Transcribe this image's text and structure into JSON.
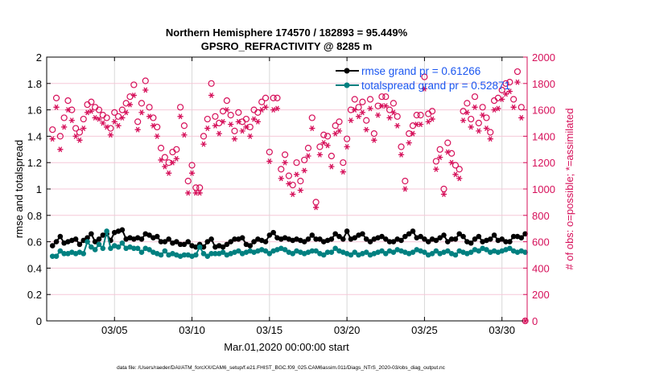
{
  "chart_data": {
    "type": "line",
    "title": "Northern Hemisphere 174570 / 182893 = 95.449%",
    "subtitle": "GPSRO_REFRACTIVITY @ 8285 m",
    "xlabel": "Mar.01,2020 00:00:00 start",
    "ylabel": "rmse and totalspread",
    "y2label": "# of obs: o=possible; *=assimilated",
    "footnote": "data file: /Users/raeder/DAI/ATM_forcXX/CAM6_setup/f.e21.FHIST_BGC.f09_025.CAM6assim.011/Diags_NTrS_2020-03/obs_diag_output.nc",
    "x_start": "2020-03-01T00:00",
    "x_step_hours": 6,
    "xlim": [
      "2020-02-29T15:00",
      "2020-03-31T15:00"
    ],
    "xticks": [
      {
        "date": "2020-03-05",
        "label": "03/05"
      },
      {
        "date": "2020-03-10",
        "label": "03/10"
      },
      {
        "date": "2020-03-15",
        "label": "03/15"
      },
      {
        "date": "2020-03-20",
        "label": "03/20"
      },
      {
        "date": "2020-03-25",
        "label": "03/25"
      },
      {
        "date": "2020-03-30",
        "label": "03/30"
      }
    ],
    "ylim": [
      0,
      2
    ],
    "yticks": [
      "0",
      "0.2",
      "0.4",
      "0.6",
      "0.8",
      "1",
      "1.2",
      "1.4",
      "1.6",
      "1.8",
      "2"
    ],
    "y2lim": [
      0,
      2000
    ],
    "y2ticks": [
      "0",
      "200",
      "400",
      "600",
      "800",
      "1000",
      "1200",
      "1400",
      "1600",
      "1800",
      "2000"
    ],
    "grid": true,
    "legend_placement": "top-right",
    "series": [
      {
        "name": "rmse grand pr = 0.61266",
        "axis": "left",
        "color": "#000000",
        "marker": "dot",
        "values": [
          0.57,
          0.6,
          0.64,
          0.59,
          0.6,
          0.61,
          0.62,
          0.58,
          0.61,
          0.63,
          0.66,
          0.6,
          0.62,
          0.65,
          0.66,
          0.61,
          0.67,
          0.68,
          0.69,
          0.62,
          0.63,
          0.62,
          0.63,
          0.62,
          0.66,
          0.65,
          0.63,
          0.64,
          0.6,
          0.6,
          0.62,
          0.59,
          0.6,
          0.58,
          0.58,
          0.6,
          0.57,
          0.56,
          0.58,
          0.56,
          0.6,
          0.62,
          0.56,
          0.57,
          0.56,
          0.58,
          0.6,
          0.62,
          0.62,
          0.63,
          0.58,
          0.57,
          0.6,
          0.62,
          0.61,
          0.6,
          0.65,
          0.67,
          0.63,
          0.62,
          0.63,
          0.62,
          0.61,
          0.62,
          0.61,
          0.6,
          0.62,
          0.65,
          0.62,
          0.62,
          0.6,
          0.61,
          0.62,
          0.66,
          0.64,
          0.62,
          0.68,
          0.62,
          0.63,
          0.65,
          0.66,
          0.62,
          0.6,
          0.62,
          0.63,
          0.64,
          0.62,
          0.6,
          0.6,
          0.62,
          0.61,
          0.64,
          0.66,
          0.68,
          0.63,
          0.64,
          0.62,
          0.6,
          0.62,
          0.61,
          0.63,
          0.65,
          0.6,
          0.62,
          0.62,
          0.66,
          0.64,
          0.6,
          0.59,
          0.62,
          0.64,
          0.6,
          0.61,
          0.62,
          0.65,
          0.61,
          0.62,
          0.6,
          0.6,
          0.64,
          0.64,
          0.63,
          0.66
        ]
      },
      {
        "name": "totalspread grand pr = 0.52871",
        "axis": "left",
        "color": "#008080",
        "marker": "dot",
        "values": [
          0.49,
          0.49,
          0.53,
          0.51,
          0.51,
          0.52,
          0.51,
          0.52,
          0.51,
          0.6,
          0.56,
          0.54,
          0.58,
          0.55,
          0.68,
          0.55,
          0.57,
          0.56,
          0.59,
          0.55,
          0.56,
          0.55,
          0.55,
          0.52,
          0.55,
          0.54,
          0.52,
          0.51,
          0.5,
          0.53,
          0.5,
          0.51,
          0.5,
          0.49,
          0.5,
          0.5,
          0.49,
          0.5,
          0.56,
          0.51,
          0.49,
          0.51,
          0.51,
          0.51,
          0.52,
          0.5,
          0.51,
          0.52,
          0.53,
          0.51,
          0.52,
          0.53,
          0.52,
          0.53,
          0.54,
          0.53,
          0.51,
          0.53,
          0.54,
          0.55,
          0.54,
          0.52,
          0.51,
          0.53,
          0.52,
          0.51,
          0.52,
          0.53,
          0.53,
          0.51,
          0.5,
          0.52,
          0.52,
          0.55,
          0.53,
          0.52,
          0.51,
          0.5,
          0.52,
          0.5,
          0.51,
          0.52,
          0.5,
          0.51,
          0.52,
          0.53,
          0.51,
          0.53,
          0.52,
          0.54,
          0.53,
          0.52,
          0.51,
          0.52,
          0.54,
          0.53,
          0.52,
          0.5,
          0.51,
          0.53,
          0.51,
          0.52,
          0.53,
          0.51,
          0.5,
          0.53,
          0.52,
          0.51,
          0.52,
          0.54,
          0.53,
          0.55,
          0.54,
          0.52,
          0.53,
          0.52,
          0.53,
          0.54,
          0.55,
          0.53,
          0.52,
          0.53,
          0.52
        ]
      },
      {
        "name": "possible",
        "axis": "right",
        "color": "#d6105a",
        "marker": "o",
        "values": [
          1450,
          1690,
          1400,
          1540,
          1670,
          1600,
          1460,
          1430,
          1530,
          1640,
          1660,
          1620,
          1600,
          1560,
          1540,
          1460,
          1580,
          1550,
          1600,
          1650,
          1700,
          1790,
          1510,
          1650,
          1820,
          1620,
          1540,
          1470,
          1310,
          1240,
          1200,
          1280,
          1300,
          1620,
          1480,
          1060,
          1180,
          1010,
          1010,
          1400,
          1530,
          1800,
          1550,
          1500,
          1590,
          1670,
          1560,
          1440,
          1580,
          1510,
          1530,
          1470,
          1600,
          1580,
          1660,
          1690,
          1280,
          1690,
          1690,
          1150,
          1260,
          1100,
          1030,
          1200,
          1060,
          1220,
          1310,
          1540,
          900,
          1320,
          1410,
          1400,
          1250,
          1480,
          1510,
          1200,
          1380,
          1600,
          1680,
          1620,
          1660,
          1520,
          1680,
          1420,
          1630,
          1700,
          1700,
          1600,
          1650,
          1550,
          1320,
          1060,
          1420,
          1480,
          1560,
          1560,
          1850,
          1570,
          1590,
          1210,
          1300,
          1000,
          1350,
          1270,
          1180,
          1150,
          1590,
          1650,
          1530,
          1700,
          1500,
          1620,
          1540,
          1430,
          1670,
          1690,
          1750,
          1800,
          1810,
          1680,
          1890,
          1620,
          0
        ]
      },
      {
        "name": "assimilated",
        "axis": "right",
        "color": "#d6105a",
        "marker": "*",
        "values": [
          1380,
          1620,
          1300,
          1470,
          1600,
          1520,
          1400,
          1370,
          1460,
          1580,
          1590,
          1540,
          1530,
          1500,
          1470,
          1410,
          1510,
          1480,
          1540,
          1580,
          1640,
          1710,
          1450,
          1580,
          1750,
          1550,
          1480,
          1400,
          1220,
          1170,
          1120,
          1200,
          1230,
          1550,
          1410,
          970,
          1120,
          970,
          970,
          1340,
          1460,
          1710,
          1480,
          1420,
          1510,
          1600,
          1490,
          1380,
          1510,
          1440,
          1470,
          1400,
          1530,
          1510,
          1600,
          1620,
          1210,
          1600,
          1610,
          1080,
          1200,
          1040,
          960,
          1110,
          990,
          1140,
          1250,
          1460,
          860,
          1260,
          1350,
          1330,
          1170,
          1420,
          1440,
          1130,
          1320,
          1520,
          1600,
          1550,
          1580,
          1450,
          1610,
          1370,
          1560,
          1630,
          1630,
          1540,
          1580,
          1480,
          1260,
          1000,
          1350,
          1420,
          1490,
          1490,
          1760,
          1510,
          1530,
          1150,
          1240,
          960,
          1280,
          1200,
          1110,
          1080,
          1520,
          1580,
          1470,
          1620,
          1440,
          1560,
          1460,
          1380,
          1600,
          1610,
          1680,
          1720,
          1740,
          1620,
          1810,
          1540,
          0
        ]
      }
    ]
  }
}
